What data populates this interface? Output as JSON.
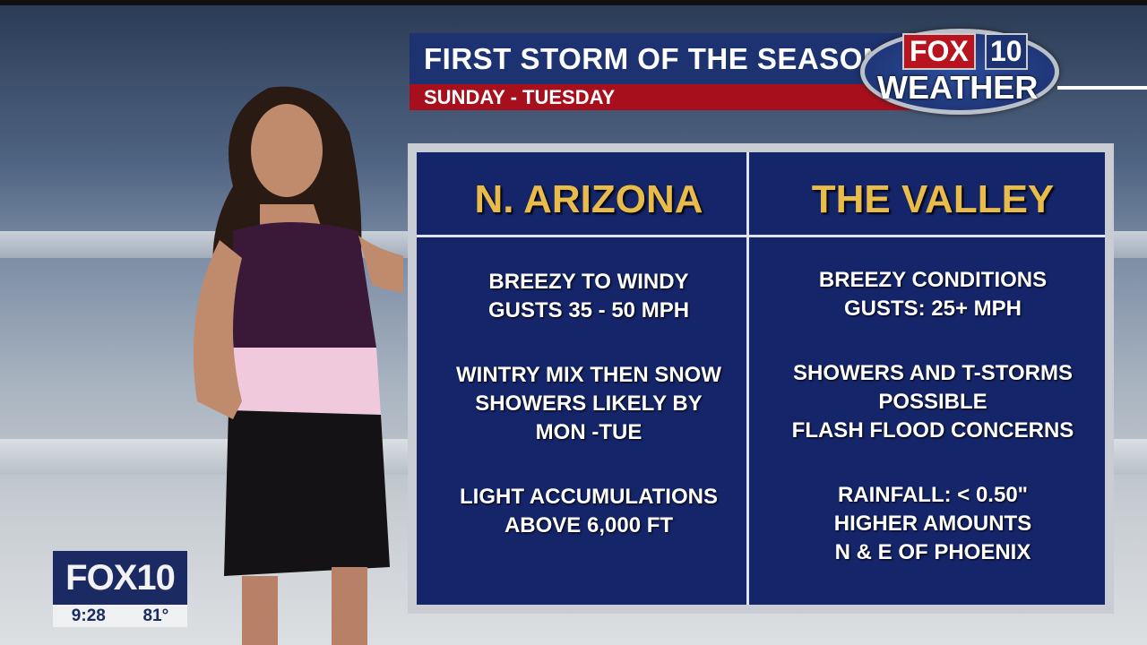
{
  "headline": {
    "title": "FIRST STORM OF THE SEASON!",
    "subtitle": "SUNDAY - TUESDAY"
  },
  "logo": {
    "text": "FOX 10 WEATHER",
    "fox": "FOX",
    "number": "10",
    "weather": "WEATHER"
  },
  "board": {
    "columns": [
      {
        "heading": "N. ARIZONA",
        "items": [
          [
            "BREEZY TO WINDY",
            "GUSTS 35 - 50 MPH"
          ],
          [
            "WINTRY MIX THEN SNOW",
            "SHOWERS LIKELY BY",
            "MON -TUE"
          ],
          [
            "LIGHT ACCUMULATIONS",
            "ABOVE 6,000 FT"
          ]
        ]
      },
      {
        "heading": "THE VALLEY",
        "items": [
          [
            "BREEZY CONDITIONS",
            "GUSTS: 25+ MPH"
          ],
          [
            "SHOWERS AND T-STORMS",
            "POSSIBLE",
            "FLASH FLOOD CONCERNS"
          ],
          [
            "RAINFALL: < 0.50\"",
            "HIGHER AMOUNTS",
            "N & E OF PHOENIX"
          ]
        ]
      }
    ]
  },
  "bug": {
    "logo": "FOX10",
    "time": "9:28",
    "temp": "81°"
  },
  "colors": {
    "navy": "#15256a",
    "gold": "#e8bb4a",
    "red": "#a80f1c"
  }
}
